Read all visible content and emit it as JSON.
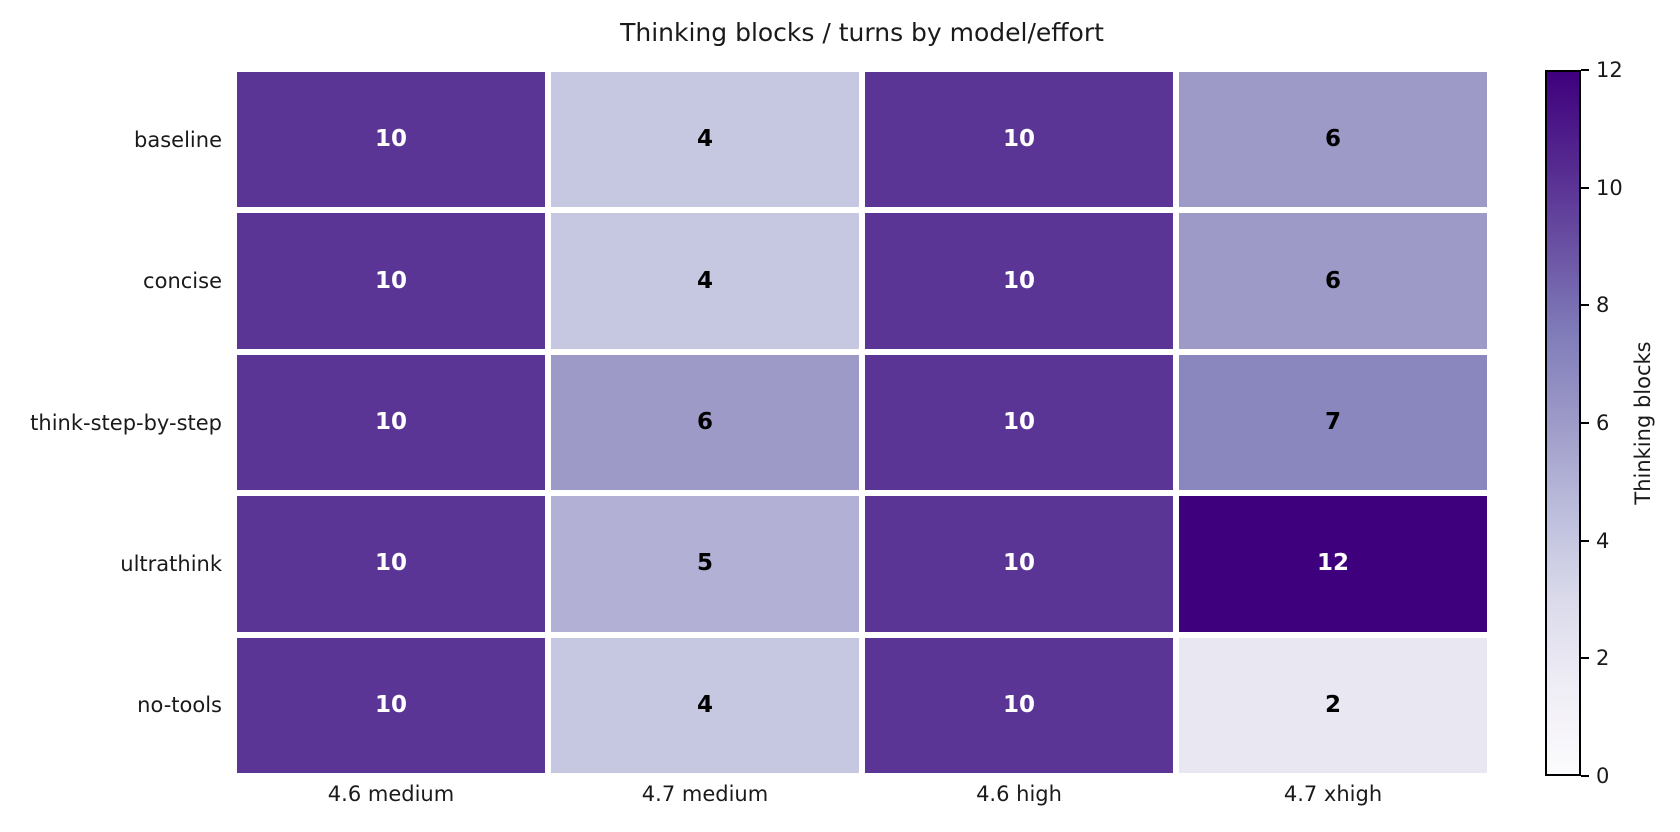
{
  "chart_data": {
    "type": "heatmap",
    "title": "Thinking blocks / turns by model/effort",
    "rows": [
      "baseline",
      "concise",
      "think-step-by-step",
      "ultrathink",
      "no-tools"
    ],
    "columns": [
      "4.6 medium",
      "4.7 medium",
      "4.6 high",
      "4.7 xhigh"
    ],
    "values": [
      [
        10,
        4,
        10,
        6
      ],
      [
        10,
        4,
        10,
        6
      ],
      [
        10,
        6,
        10,
        7
      ],
      [
        10,
        5,
        10,
        12
      ],
      [
        10,
        4,
        10,
        2
      ]
    ],
    "vmin": 0,
    "vmax": 12,
    "annotations_bold": true,
    "grid_line_color": "#ffffff",
    "colorbar": {
      "label": "Thinking blocks",
      "ticks": [
        0,
        2,
        4,
        6,
        8,
        10,
        12
      ],
      "outline_color": "#000000"
    },
    "colormap": {
      "name": "Purples",
      "stops": [
        "#fcfbfd",
        "#efedf5",
        "#dadaeb",
        "#bcbddc",
        "#9e9ac8",
        "#807dba",
        "#6a51a3",
        "#54278f",
        "#3f007d"
      ]
    },
    "annotation_text_colors": {
      "on_light": "#000000",
      "on_dark": "#ffffff"
    },
    "layout_hints": {
      "legend_position": "right-colorbar",
      "grid": "off",
      "x_tick_rotation": 0,
      "y_tick_rotation": 0
    }
  }
}
